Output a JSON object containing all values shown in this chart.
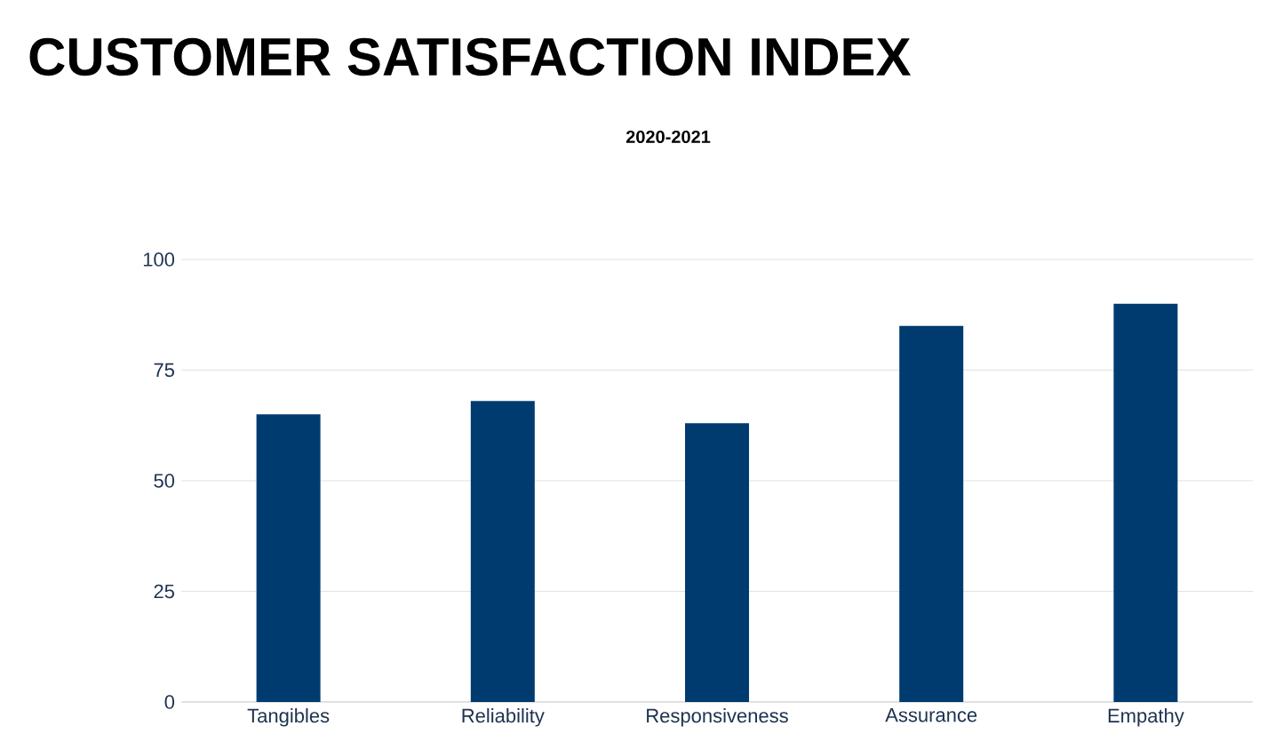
{
  "chart_data": {
    "type": "bar",
    "title": "CUSTOMER SATISFACTION INDEX",
    "subtitle": "2020-2021",
    "categories": [
      "Tangibles",
      "Reliability",
      "Responsiveness",
      "Assurance",
      "Empathy"
    ],
    "values": [
      65,
      68,
      63,
      85,
      90
    ],
    "color": "#003b6f",
    "ylim": [
      0,
      100
    ],
    "yticks": [
      0,
      25,
      50,
      75,
      100
    ],
    "grid": "y"
  }
}
